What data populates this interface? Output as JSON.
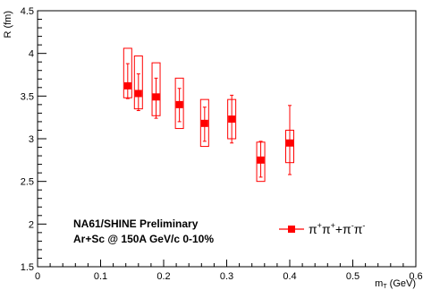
{
  "chart_data": {
    "type": "scatter",
    "title": "",
    "xlabel": "m",
    "xlabel_sub": "T",
    "xlabel_unit": " (GeV)",
    "ylabel": "R (fm)",
    "xlim": [
      0,
      0.6
    ],
    "ylim": [
      1.5,
      4.5
    ],
    "x_ticks": [
      "0",
      "0.1",
      "0.2",
      "0.3",
      "0.4",
      "0.5",
      "0.6"
    ],
    "y_ticks": [
      "1.5",
      "2",
      "2.5",
      "3",
      "3.5",
      "4",
      "4.5"
    ],
    "annotation_lines": [
      "NA61/SHINE Preliminary",
      "Ar+Sc @ 150A GeV/c 0-10%"
    ],
    "legend": {
      "placement": "bottom-right",
      "label_parts": [
        {
          "t": "π",
          "s": "n"
        },
        {
          "t": "+",
          "s": "sup"
        },
        {
          "t": "π",
          "s": "n"
        },
        {
          "t": "+",
          "s": "sup"
        },
        {
          "t": "+π",
          "s": "n"
        },
        {
          "t": "-",
          "s": "sup"
        },
        {
          "t": "π",
          "s": "n"
        },
        {
          "t": "-",
          "s": "sup"
        }
      ]
    },
    "series": [
      {
        "color": "#ff0000",
        "points": [
          {
            "x": 0.143,
            "y": 3.62,
            "stat_lo": 3.47,
            "stat_hi": 3.88,
            "sys_lo": 3.48,
            "sys_hi": 4.06
          },
          {
            "x": 0.16,
            "y": 3.53,
            "stat_lo": 3.33,
            "stat_hi": 3.76,
            "sys_lo": 3.35,
            "sys_hi": 3.97
          },
          {
            "x": 0.188,
            "y": 3.49,
            "stat_lo": 3.24,
            "stat_hi": 3.71,
            "sys_lo": 3.27,
            "sys_hi": 3.89
          },
          {
            "x": 0.225,
            "y": 3.4,
            "stat_lo": 3.2,
            "stat_hi": 3.59,
            "sys_lo": 3.12,
            "sys_hi": 3.71
          },
          {
            "x": 0.265,
            "y": 3.18,
            "stat_lo": 2.97,
            "stat_hi": 3.37,
            "sys_lo": 2.91,
            "sys_hi": 3.46
          },
          {
            "x": 0.308,
            "y": 3.23,
            "stat_lo": 2.95,
            "stat_hi": 3.51,
            "sys_lo": 3.0,
            "sys_hi": 3.46
          },
          {
            "x": 0.354,
            "y": 2.75,
            "stat_lo": 2.55,
            "stat_hi": 2.97,
            "sys_lo": 2.5,
            "sys_hi": 2.96
          },
          {
            "x": 0.4,
            "y": 2.95,
            "stat_lo": 2.58,
            "stat_hi": 3.39,
            "sys_lo": 2.72,
            "sys_hi": 3.1
          }
        ]
      }
    ]
  }
}
